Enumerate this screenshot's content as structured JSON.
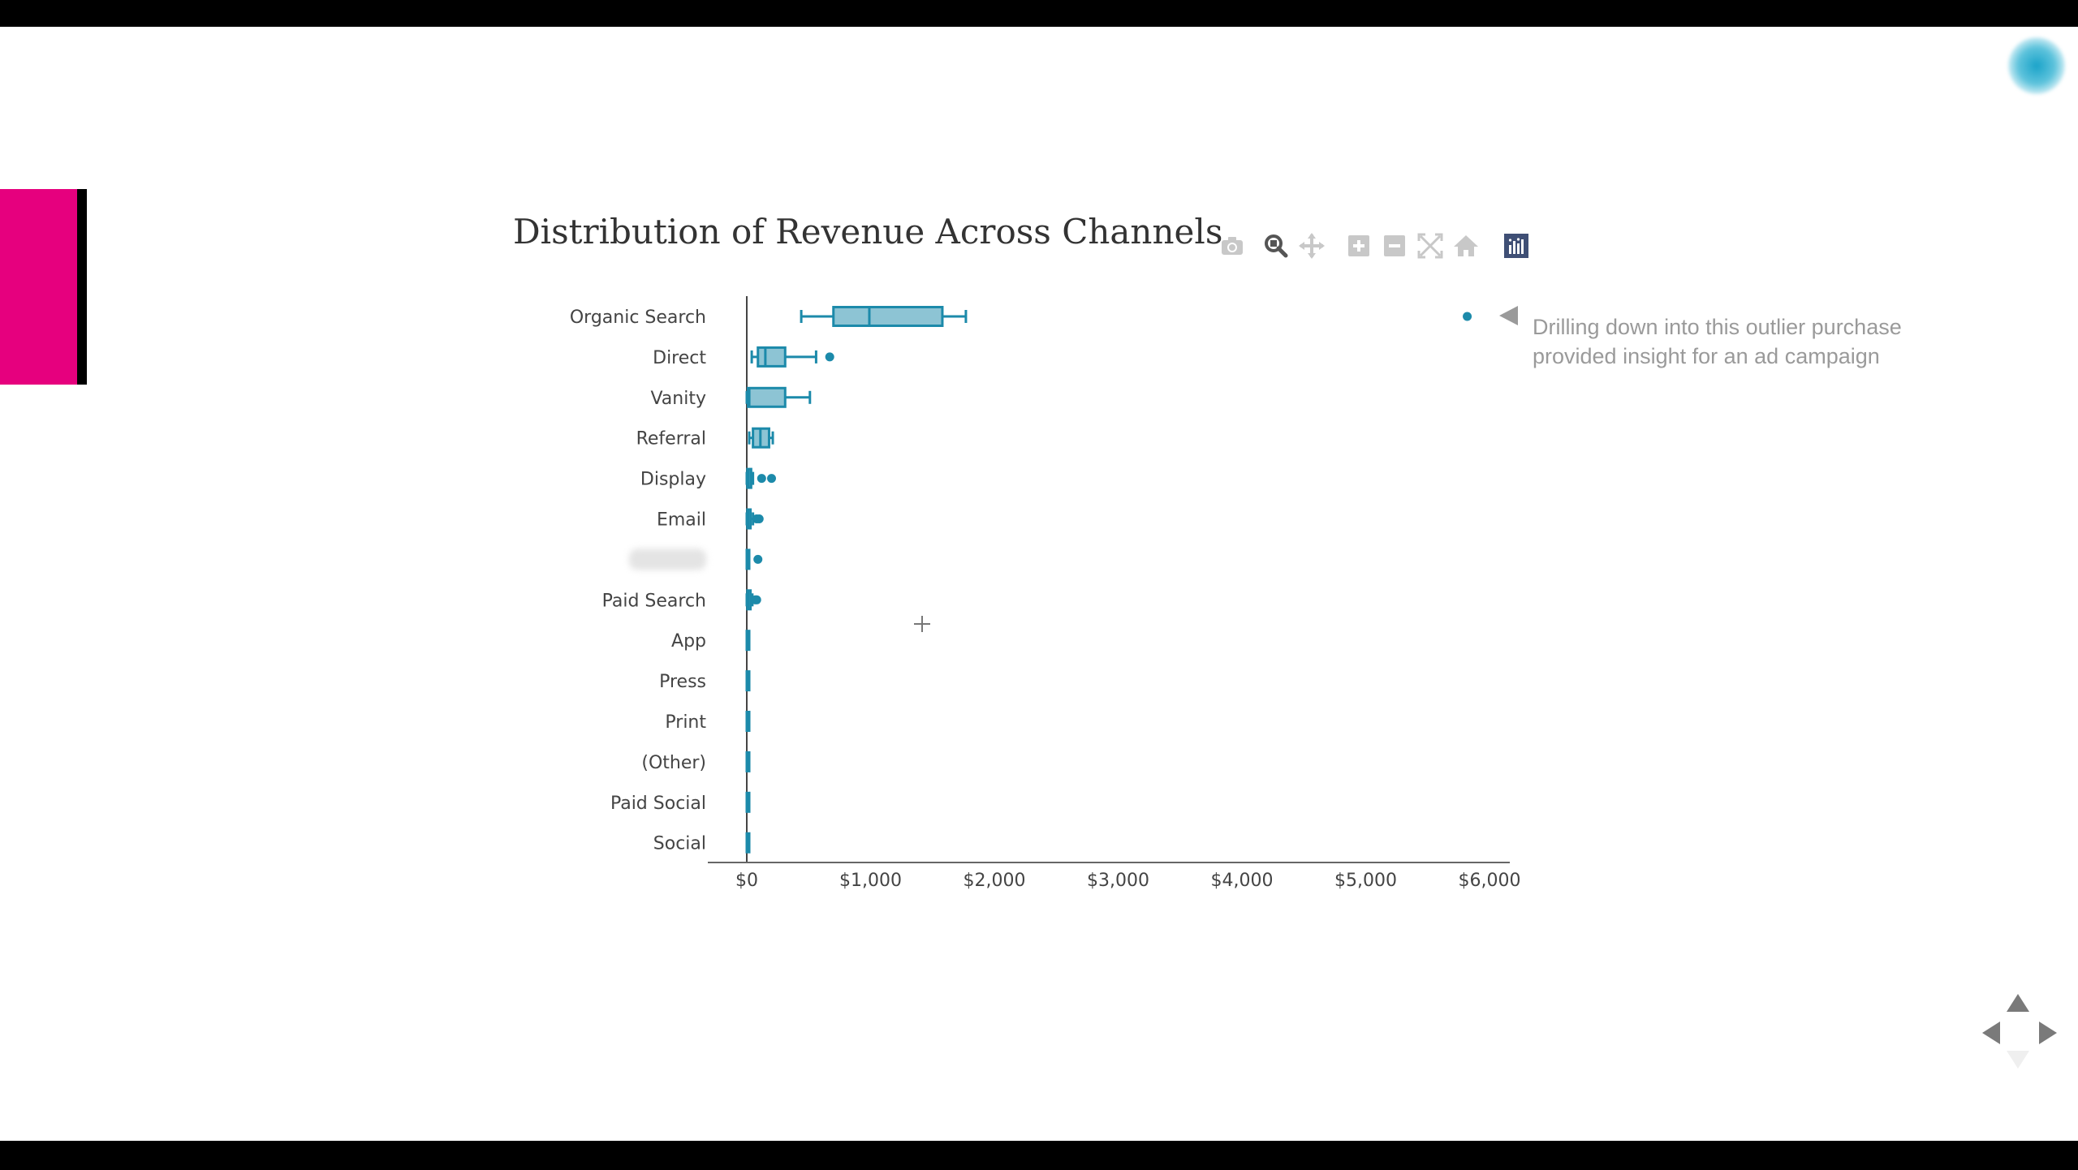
{
  "slide": {
    "accent_color": "#e6007e"
  },
  "chart_data": {
    "type": "box",
    "orientation": "horizontal",
    "title": "Distribution of Revenue Across Channels",
    "xlabel": "",
    "ylabel": "",
    "xlim": [
      -320,
      6000
    ],
    "x_ticks": [
      0,
      1000,
      2000,
      3000,
      4000,
      5000,
      6000
    ],
    "x_tick_labels": [
      "$0",
      "$1,000",
      "$2,000",
      "$3,000",
      "$4,000",
      "$5,000",
      "$6,000"
    ],
    "grid": false,
    "color": "#1c8aaa",
    "categories": [
      "Organic Search",
      "Direct",
      "Vanity",
      "Referral",
      "Display",
      "Email",
      "",
      "Paid Search",
      "App",
      "Press",
      "Print",
      "(Other)",
      "Paid Social",
      "Social"
    ],
    "boxes": [
      {
        "category": "Organic Search",
        "min": 440,
        "q1": 700,
        "median": 990,
        "q3": 1580,
        "max": 1770,
        "outliers": [
          5820
        ]
      },
      {
        "category": "Direct",
        "min": 40,
        "q1": 90,
        "median": 150,
        "q3": 310,
        "max": 560,
        "outliers": [
          670
        ]
      },
      {
        "category": "Vanity",
        "min": 0,
        "q1": 10,
        "median": 20,
        "q3": 310,
        "max": 510,
        "outliers": []
      },
      {
        "category": "Referral",
        "min": 20,
        "q1": 50,
        "median": 110,
        "q3": 180,
        "max": 210,
        "outliers": []
      },
      {
        "category": "Display",
        "min": 0,
        "q1": 5,
        "median": 15,
        "q3": 35,
        "max": 50,
        "outliers": [
          120,
          200
        ]
      },
      {
        "category": "Email",
        "min": 0,
        "q1": 5,
        "median": 10,
        "q3": 30,
        "max": 50,
        "outliers": [
          80,
          100
        ]
      },
      {
        "category": "",
        "min": 0,
        "q1": 0,
        "median": 0,
        "q3": 5,
        "max": 10,
        "outliers": [
          90
        ]
      },
      {
        "category": "Paid Search",
        "min": 0,
        "q1": 5,
        "median": 10,
        "q3": 30,
        "max": 45,
        "outliers": [
          70,
          80
        ]
      },
      {
        "category": "App",
        "min": 0,
        "q1": 0,
        "median": 0,
        "q3": 2,
        "max": 5,
        "outliers": []
      },
      {
        "category": "Press",
        "min": 0,
        "q1": 0,
        "median": 0,
        "q3": 2,
        "max": 5,
        "outliers": []
      },
      {
        "category": "Print",
        "min": 0,
        "q1": 0,
        "median": 0,
        "q3": 2,
        "max": 5,
        "outliers": []
      },
      {
        "category": "(Other)",
        "min": 0,
        "q1": 0,
        "median": 0,
        "q3": 2,
        "max": 5,
        "outliers": []
      },
      {
        "category": "Paid Social",
        "min": 0,
        "q1": 0,
        "median": 0,
        "q3": 2,
        "max": 5,
        "outliers": []
      },
      {
        "category": "Social",
        "min": 0,
        "q1": 0,
        "median": 0,
        "q3": 2,
        "max": 5,
        "outliers": []
      }
    ],
    "annotation": {
      "lines": [
        "Drilling down into this outlier purchase",
        "provided insight for an ad campaign"
      ],
      "target_category": "Organic Search",
      "target_value": 5820
    }
  },
  "toolbar": {
    "icons": [
      "camera-icon",
      "zoom-icon",
      "pan-icon",
      "zoom-in-icon",
      "zoom-out-icon",
      "autoscale-icon",
      "reset-home-icon",
      "plotly-logo-icon"
    ]
  }
}
